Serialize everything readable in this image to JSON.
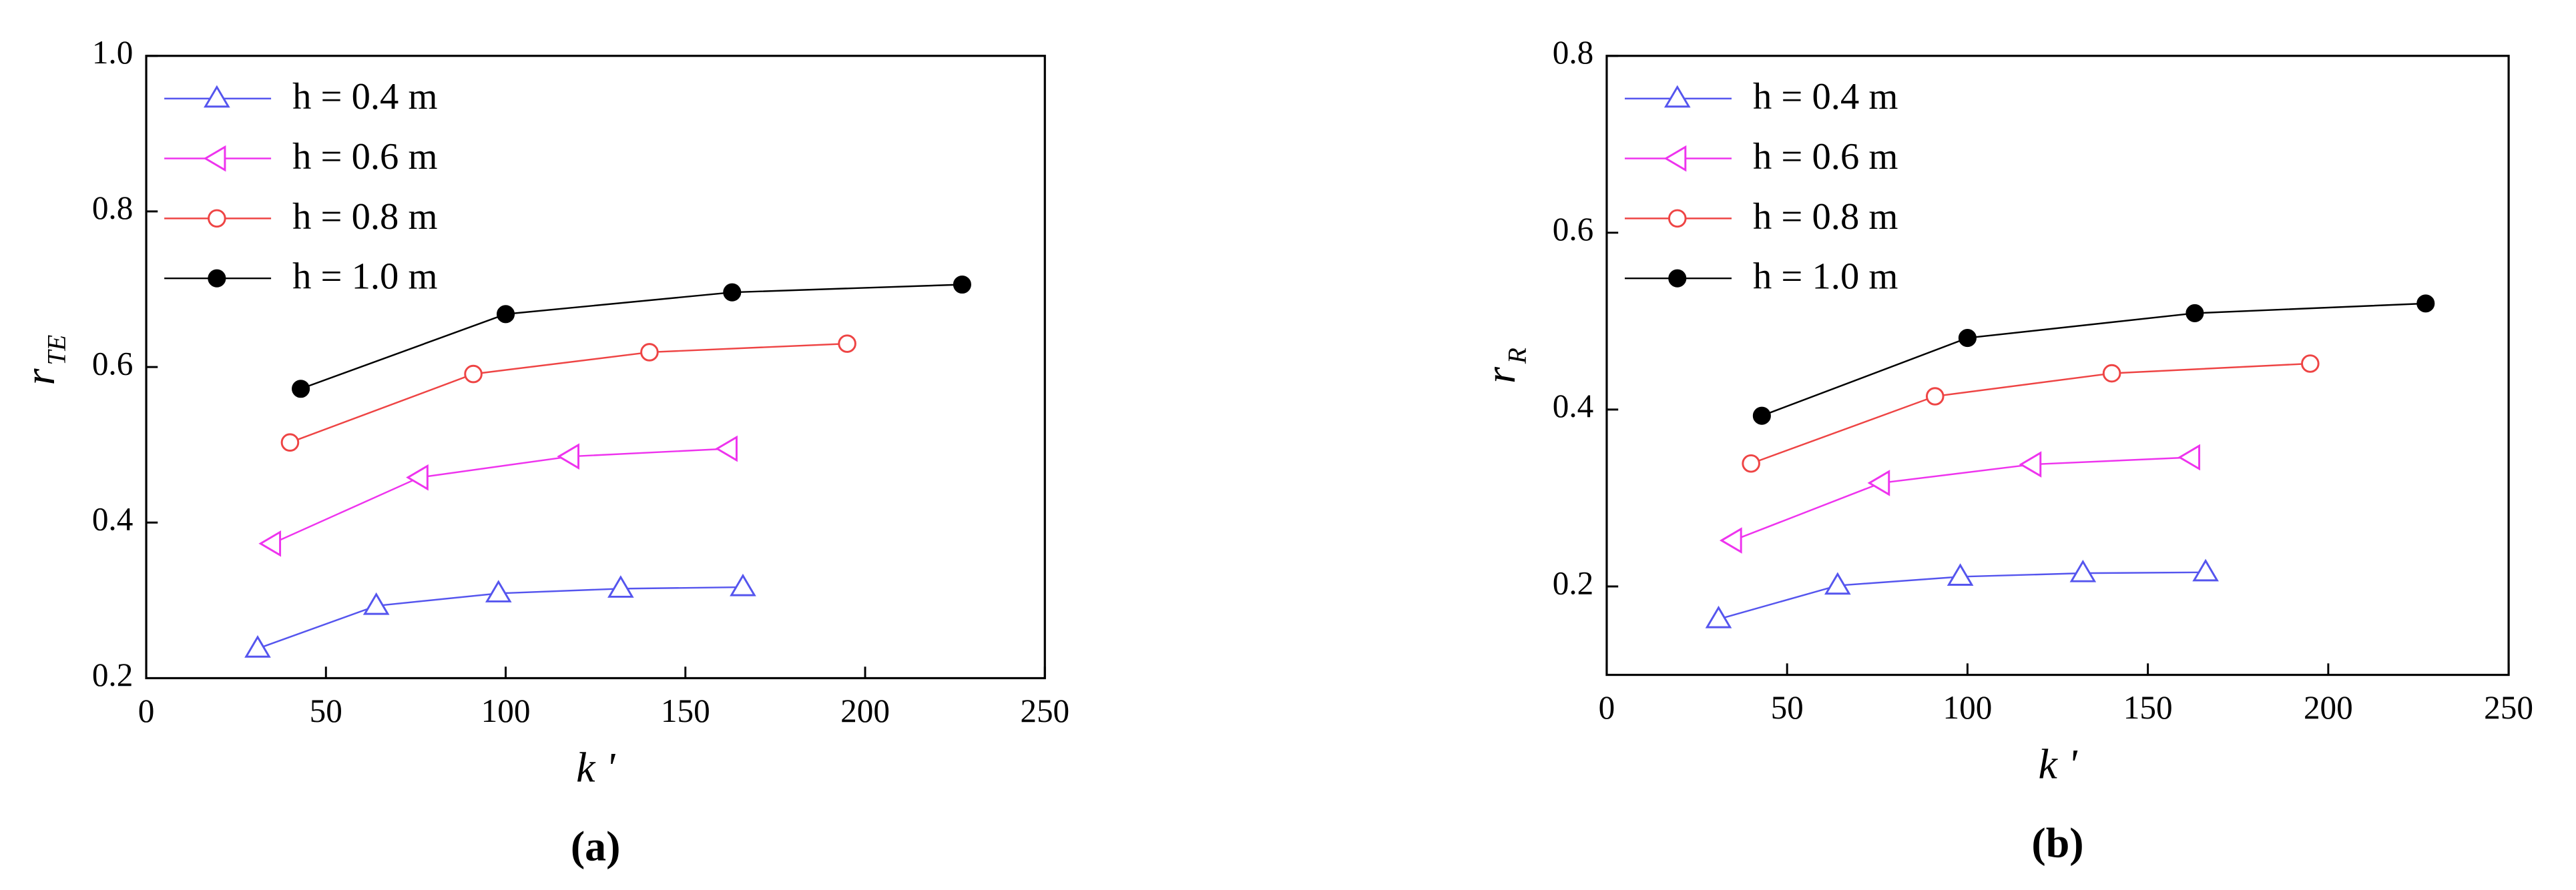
{
  "chart_data": [
    {
      "type": "line",
      "caption": "(a)",
      "xlabel": "k '",
      "ylabel": "r",
      "ylabel_sub": "TE",
      "xlim": [
        0,
        250
      ],
      "xticks": [
        0,
        50,
        100,
        150,
        200,
        250
      ],
      "ylim": [
        0.2,
        1.0
      ],
      "yticks": [
        0.2,
        0.4,
        0.6,
        0.8,
        {
          "value": 1,
          "label": "1.0"
        }
      ],
      "legend": "upper left",
      "series": [
        {
          "name": "h = 0.4 m",
          "color": "#5555ee",
          "marker": "triangle",
          "x": [
            31,
            64,
            98,
            132,
            166
          ],
          "values": [
            0.238,
            0.293,
            0.309,
            0.315,
            0.317
          ]
        },
        {
          "name": "h = 0.6 m",
          "color": "#ee33ee",
          "marker": "triangle-left",
          "x": [
            35,
            76,
            118,
            162
          ],
          "values": [
            0.373,
            0.458,
            0.485,
            0.495
          ]
        },
        {
          "name": "h = 0.8 m",
          "color": "#ee4444",
          "marker": "circle",
          "x": [
            40,
            91,
            140,
            195
          ],
          "values": [
            0.503,
            0.591,
            0.619,
            0.63
          ]
        },
        {
          "name": "h = 1.0 m",
          "color": "#000000",
          "marker": "filled-circle",
          "x": [
            43,
            100,
            163,
            227
          ],
          "values": [
            0.572,
            0.668,
            0.696,
            0.706
          ]
        }
      ]
    },
    {
      "type": "line",
      "caption": "(b)",
      "xlabel": "k '",
      "ylabel": "r",
      "ylabel_sub": "R",
      "xlim": [
        0,
        250
      ],
      "xticks": [
        0,
        50,
        100,
        150,
        200,
        250
      ],
      "ylim": [
        0.1,
        0.8
      ],
      "yticks": [
        0.2,
        0.4,
        0.6,
        0.8
      ],
      "legend": "upper left",
      "series": [
        {
          "name": "h = 0.4 m",
          "color": "#5555ee",
          "marker": "triangle",
          "x": [
            31,
            64,
            98,
            132,
            166
          ],
          "values": [
            0.163,
            0.201,
            0.211,
            0.215,
            0.216
          ]
        },
        {
          "name": "h = 0.6 m",
          "color": "#ee33ee",
          "marker": "triangle-left",
          "x": [
            35,
            76,
            118,
            162
          ],
          "values": [
            0.252,
            0.317,
            0.338,
            0.346
          ]
        },
        {
          "name": "h = 0.8 m",
          "color": "#ee4444",
          "marker": "circle",
          "x": [
            40,
            91,
            140,
            195
          ],
          "values": [
            0.339,
            0.415,
            0.441,
            0.452
          ]
        },
        {
          "name": "h = 1.0 m",
          "color": "#000000",
          "marker": "filled-circle",
          "x": [
            43,
            100,
            163,
            227
          ],
          "values": [
            0.393,
            0.481,
            0.509,
            0.52
          ]
        }
      ]
    }
  ]
}
